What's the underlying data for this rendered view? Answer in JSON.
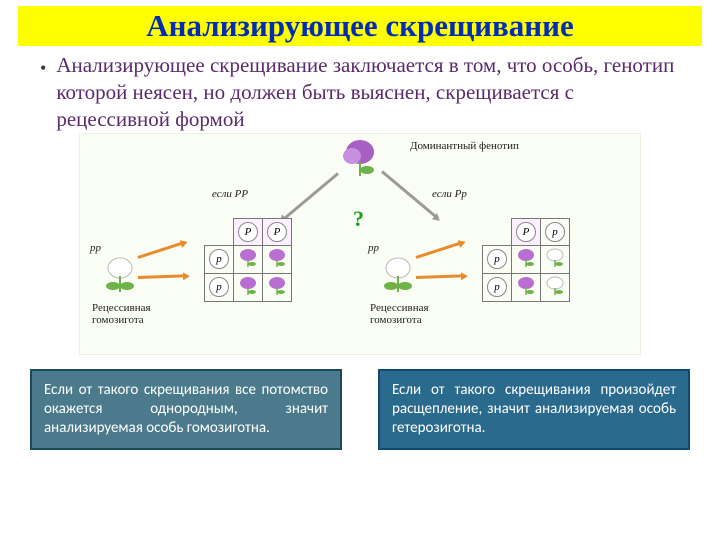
{
  "title": "Анализирующее скрещивание",
  "bullet": "Анализирующее скрещивание заключается в том, что особь, генотип которой неясен, но должен быть выяснен, скрещивается с рецессивной формой",
  "diagram": {
    "background_color": "#f9fdf4",
    "border_color": "#eaf2dc",
    "top_flower_color": "#a85fc4",
    "dominant_label": "Доминантный фенотип",
    "if_PP": "если РР",
    "if_Pp": "если Рр",
    "question_mark": "?",
    "question_mark_color": "#1aa01a",
    "recessive_flower_color": "#ffffff",
    "recessive_label": "Рецессивная гомозигота",
    "pp_label": "рр",
    "arrow_orange": "#e88b2a",
    "arrow_gray": "#9a9a9a",
    "allele_P": "P",
    "allele_p": "p",
    "punnett_left": {
      "col_headers": [
        "P",
        "P"
      ],
      "row_headers": [
        "p",
        "p"
      ],
      "cells_purple": [
        [
          true,
          true
        ],
        [
          true,
          true
        ]
      ]
    },
    "punnett_right": {
      "col_headers": [
        "P",
        "p"
      ],
      "row_headers": [
        "p",
        "p"
      ],
      "cells_purple": [
        [
          true,
          false
        ],
        [
          true,
          false
        ]
      ]
    },
    "flower_purple": "#b96fd1",
    "flower_white": "#ffffff",
    "leaf_color": "#6fb24a"
  },
  "box_left": {
    "text": "Если от такого скрещивания все потомство окажется однородным, значит анализируемая особь гомозиготна.",
    "bg": "#4a7a8c",
    "border": "#1a4a5c"
  },
  "box_right": {
    "text": "Если от такого скрещивания произойдет расщепление, значит анализируемая особь гетерозиготна.",
    "bg": "#2a6a8c",
    "border": "#104a6c"
  },
  "colors": {
    "title_text": "#002db3",
    "title_bg": "#ffff00",
    "bullet_text": "#5a2a6a"
  }
}
